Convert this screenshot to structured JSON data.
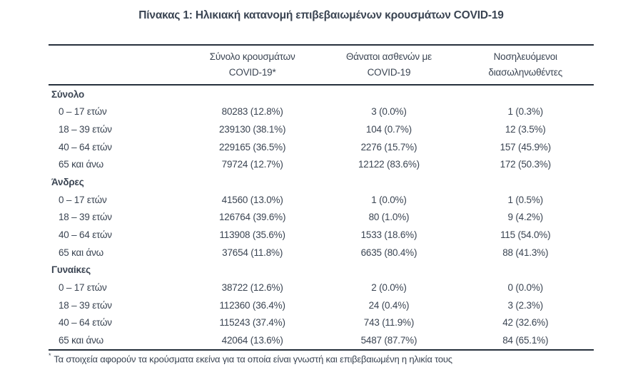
{
  "title": "Πίνακας 1: Ηλικιακή κατανομή επιβεβαιωμένων κρουσμάτων COVID-19",
  "table": {
    "columns": [
      {
        "line1": "Σύνολο κρουσμάτων",
        "line2": "COVID-19*"
      },
      {
        "line1": "Θάνατοι ασθενών με",
        "line2": "COVID-19"
      },
      {
        "line1": "Νοσηλευόμενοι",
        "line2": "διασωληνωθέντες"
      }
    ],
    "sections": [
      {
        "label": "Σύνολο",
        "rows": [
          {
            "age": "0 – 17 ετών",
            "cases": "80283 (12.8%)",
            "deaths": "3 (0.0%)",
            "intubated": "1 (0.3%)"
          },
          {
            "age": "18 – 39 ετών",
            "cases": "239130 (38.1%)",
            "deaths": "104 (0.7%)",
            "intubated": "12 (3.5%)"
          },
          {
            "age": "40 – 64 ετών",
            "cases": "229165 (36.5%)",
            "deaths": "2276 (15.7%)",
            "intubated": "157 (45.9%)"
          },
          {
            "age": "65 και άνω",
            "cases": "79724 (12.7%)",
            "deaths": "12122 (83.6%)",
            "intubated": "172 (50.3%)"
          }
        ]
      },
      {
        "label": "Άνδρες",
        "rows": [
          {
            "age": "0 – 17 ετών",
            "cases": "41560 (13.0%)",
            "deaths": "1 (0.0%)",
            "intubated": "1 (0.5%)"
          },
          {
            "age": "18 – 39 ετών",
            "cases": "126764 (39.6%)",
            "deaths": "80 (1.0%)",
            "intubated": "9 (4.2%)"
          },
          {
            "age": "40 – 64 ετών",
            "cases": "113908 (35.6%)",
            "deaths": "1533 (18.6%)",
            "intubated": "115 (54.0%)"
          },
          {
            "age": "65 και άνω",
            "cases": "37654 (11.8%)",
            "deaths": "6635 (80.4%)",
            "intubated": "88 (41.3%)"
          }
        ]
      },
      {
        "label": "Γυναίκες",
        "rows": [
          {
            "age": "0 – 17 ετών",
            "cases": "38722 (12.6%)",
            "deaths": "2 (0.0%)",
            "intubated": "0 (0.0%)"
          },
          {
            "age": "18 – 39 ετών",
            "cases": "112360 (36.4%)",
            "deaths": "24 (0.4%)",
            "intubated": "3 (2.3%)"
          },
          {
            "age": "40 – 64 ετών",
            "cases": "115243 (37.4%)",
            "deaths": "743 (11.9%)",
            "intubated": "42 (32.6%)"
          },
          {
            "age": "65 και άνω",
            "cases": "42064 (13.6%)",
            "deaths": "5487 (87.7%)",
            "intubated": "84 (65.1%)"
          }
        ]
      }
    ]
  },
  "footnote": {
    "marker": "*",
    "text": "Τα στοιχεία αφορούν τα κρούσματα εκείνα για τα οποία είναι γνωστή και επιβεβαιωμένη η ηλικία τους"
  },
  "colors": {
    "text": "#3b4553",
    "rule": "#26303c",
    "background": "#ffffff"
  }
}
